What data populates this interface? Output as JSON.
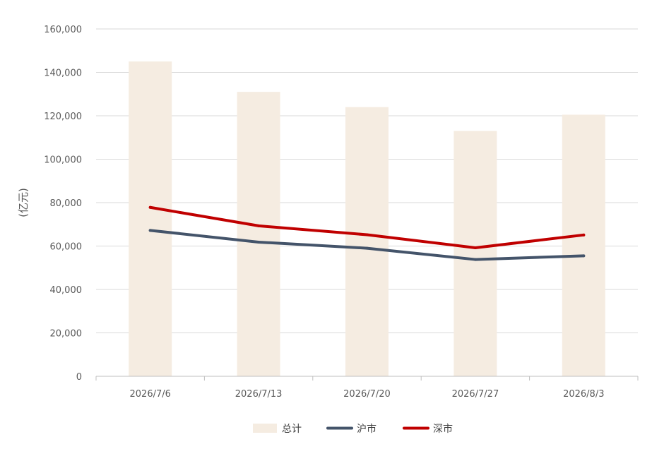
{
  "chart_data": {
    "type": "bar",
    "ylabel": "(亿元)",
    "ylim": [
      0,
      160000
    ],
    "ytick_step": 20000,
    "grid": true,
    "legend_position": "bottom",
    "categories": [
      "2026/7/6",
      "2026/7/13",
      "2026/7/20",
      "2026/7/27",
      "2026/8/3"
    ],
    "series": [
      {
        "name": "总计",
        "kind": "bar",
        "color": "#F5ECE1",
        "values": [
          145000,
          131000,
          124000,
          113000,
          120500
        ]
      },
      {
        "name": "沪市",
        "kind": "line",
        "color": "#44546A",
        "values": [
          67200,
          61800,
          59000,
          53800,
          55500
        ]
      },
      {
        "name": "深市",
        "kind": "line",
        "color": "#C00000",
        "values": [
          77800,
          69300,
          65200,
          59200,
          65100
        ]
      }
    ]
  }
}
